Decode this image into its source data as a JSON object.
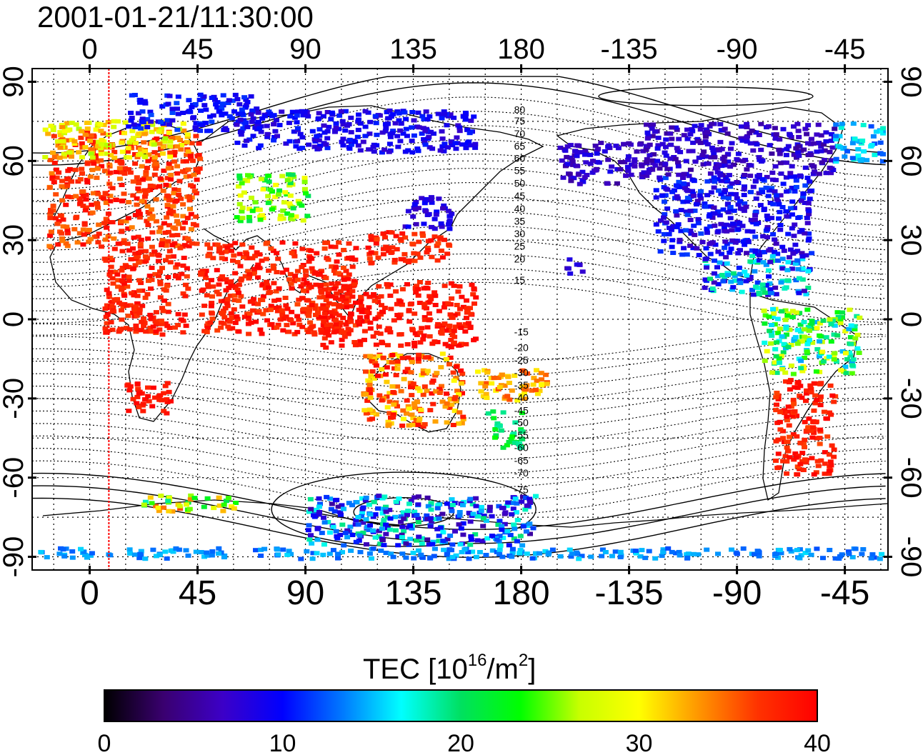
{
  "title": "2001-01-21/11:30:00",
  "map": {
    "lon_ticks": [
      "0",
      "45",
      "90",
      "135",
      "180",
      "-135",
      "-90",
      "-45"
    ],
    "lat_ticks": [
      "90",
      "60",
      "30",
      "0",
      "-30",
      "-60",
      "-90"
    ],
    "lon_tick_values": [
      0,
      45,
      90,
      135,
      180,
      225,
      270,
      315
    ],
    "lat_tick_values": [
      90,
      60,
      30,
      0,
      -30,
      -60,
      -90
    ],
    "lon_range": [
      -24,
      333
    ],
    "lat_range": [
      -95,
      95
    ],
    "grid": "dotted",
    "marker_longitude": 8
  },
  "contour_labels": [
    {
      "text": "80",
      "lat": 79.5
    },
    {
      "text": "75",
      "lat": 75.2
    },
    {
      "text": "70",
      "lat": 70.4
    },
    {
      "text": "65",
      "lat": 65.7
    },
    {
      "text": "60",
      "lat": 61
    },
    {
      "text": "55",
      "lat": 56.4
    },
    {
      "text": "50",
      "lat": 51.5
    },
    {
      "text": "45",
      "lat": 46.8
    },
    {
      "text": "40",
      "lat": 42
    },
    {
      "text": "35",
      "lat": 37.2
    },
    {
      "text": "30",
      "lat": 32.5
    },
    {
      "text": "25",
      "lat": 27.7
    },
    {
      "text": "20",
      "lat": 22.9
    },
    {
      "text": "15",
      "lat": 14.9
    },
    {
      "text": "-15",
      "lat": -4.8
    },
    {
      "text": "-20",
      "lat": -10.7
    },
    {
      "text": "-25",
      "lat": -15.4
    },
    {
      "text": "-30",
      "lat": -20.2
    },
    {
      "text": "-35",
      "lat": -24.9
    },
    {
      "text": "-40",
      "lat": -29.7
    },
    {
      "text": "-45",
      "lat": -34.5
    },
    {
      "text": "-50",
      "lat": -39.1
    },
    {
      "text": "-55",
      "lat": -43.9
    },
    {
      "text": "-60",
      "lat": -48.6
    },
    {
      "text": "-65",
      "lat": -53.5
    },
    {
      "text": "-70",
      "lat": -58.2
    },
    {
      "text": "-75",
      "lat": -64.6
    }
  ],
  "colorbar": {
    "label_main": "TEC  [10",
    "label_exp": "16",
    "label_unit": "/m",
    "label_exp2": "2",
    "label_close": "]",
    "min": 0,
    "max": 40,
    "ticks": [
      "0",
      "10",
      "20",
      "30",
      "40"
    ],
    "colors": [
      "#000000",
      "#3a0070",
      "#3c00c8",
      "#0000ff",
      "#0078ff",
      "#00ffff",
      "#00e060",
      "#00ff00",
      "#c8ff00",
      "#ffff00",
      "#ff9600",
      "#ff3200",
      "#ff0000"
    ]
  },
  "tec_regions": [
    {
      "name": "europe",
      "lon": [
        -18,
        45
      ],
      "lat": [
        28,
        72
      ],
      "tec": [
        34,
        40
      ]
    },
    {
      "name": "europe-north",
      "lon": [
        -20,
        40
      ],
      "lat": [
        62,
        76
      ],
      "tec": [
        26,
        34
      ]
    },
    {
      "name": "scandinavia-arctic",
      "lon": [
        15,
        70
      ],
      "lat": [
        72,
        86
      ],
      "tec": [
        8,
        12
      ]
    },
    {
      "name": "central-asia",
      "lon": [
        60,
        90
      ],
      "lat": [
        38,
        56
      ],
      "tec": [
        20,
        30
      ]
    },
    {
      "name": "siberia",
      "lon": [
        60,
        160
      ],
      "lat": [
        64,
        80
      ],
      "tec": [
        7,
        11
      ]
    },
    {
      "name": "south-asia",
      "lon": [
        45,
        110
      ],
      "lat": [
        -5,
        30
      ],
      "tec": [
        36,
        40
      ]
    },
    {
      "name": "east-asia",
      "lon": [
        115,
        150
      ],
      "lat": [
        22,
        34
      ],
      "tec": [
        36,
        40
      ]
    },
    {
      "name": "japan",
      "lon": [
        130,
        150
      ],
      "lat": [
        35,
        48
      ],
      "tec": [
        6,
        10
      ]
    },
    {
      "name": "indonesia",
      "lon": [
        95,
        160
      ],
      "lat": [
        -10,
        15
      ],
      "tec": [
        37,
        40
      ]
    },
    {
      "name": "australia",
      "lon": [
        113,
        155
      ],
      "lat": [
        -40,
        -12
      ],
      "tec": [
        30,
        40
      ]
    },
    {
      "name": "new-zealand",
      "lon": [
        165,
        180
      ],
      "lat": [
        -48,
        -34
      ],
      "tec": [
        18,
        24
      ]
    },
    {
      "name": "pacific-south",
      "lon": [
        160,
        190
      ],
      "lat": [
        -30,
        -18
      ],
      "tec": [
        30,
        36
      ]
    },
    {
      "name": "south-africa",
      "lon": [
        14,
        33
      ],
      "lat": [
        -35,
        -23
      ],
      "tec": [
        37,
        40
      ]
    },
    {
      "name": "africa-north",
      "lon": [
        5,
        40
      ],
      "lat": [
        -5,
        30
      ],
      "tec": [
        36,
        40
      ]
    },
    {
      "name": "alaska",
      "lon": [
        195,
        230
      ],
      "lat": [
        52,
        68
      ],
      "tec": [
        5,
        9
      ]
    },
    {
      "name": "north-america",
      "lon": [
        235,
        300
      ],
      "lat": [
        25,
        55
      ],
      "tec": [
        6,
        12
      ]
    },
    {
      "name": "canada",
      "lon": [
        230,
        310
      ],
      "lat": [
        55,
        75
      ],
      "tec": [
        5,
        9
      ]
    },
    {
      "name": "central-america",
      "lon": [
        255,
        300
      ],
      "lat": [
        10,
        25
      ],
      "tec": [
        6,
        20
      ]
    },
    {
      "name": "hawaii",
      "lon": [
        198,
        206
      ],
      "lat": [
        18,
        24
      ],
      "tec": [
        5,
        10
      ]
    },
    {
      "name": "south-america-north",
      "lon": [
        280,
        320
      ],
      "lat": [
        -20,
        5
      ],
      "tec": [
        14,
        30
      ]
    },
    {
      "name": "south-america-south",
      "lon": [
        285,
        310
      ],
      "lat": [
        -58,
        -22
      ],
      "tec": [
        36,
        40
      ]
    },
    {
      "name": "antarctica-coast",
      "lon": [
        20,
        60
      ],
      "lat": [
        -72,
        -66
      ],
      "tec": [
        18,
        36
      ]
    },
    {
      "name": "antarctica-east",
      "lon": [
        90,
        185
      ],
      "lat": [
        -85,
        -66
      ],
      "tec": [
        5,
        20
      ]
    },
    {
      "name": "antarctica-rim",
      "lon": [
        -22,
        332
      ],
      "lat": [
        -90,
        -86
      ],
      "tec": [
        12,
        16
      ]
    },
    {
      "name": "greenland-area",
      "lon": [
        310,
        330
      ],
      "lat": [
        60,
        75
      ],
      "tec": [
        12,
        18
      ]
    }
  ]
}
